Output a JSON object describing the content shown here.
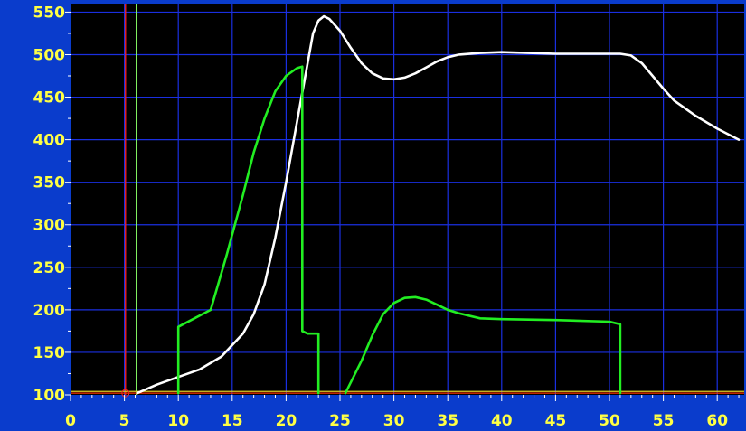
{
  "chart_data": {
    "type": "line",
    "title": "",
    "xlabel": "",
    "ylabel": "",
    "xlim": [
      0,
      62.5
    ],
    "ylim": [
      100,
      560
    ],
    "x_ticks": [
      0,
      5,
      10,
      15,
      20,
      25,
      30,
      35,
      40,
      45,
      50,
      55,
      60
    ],
    "y_ticks": [
      100,
      150,
      200,
      250,
      300,
      350,
      400,
      450,
      500,
      550
    ],
    "x_tick_labels": [
      "0",
      "5",
      "10",
      "15",
      "20",
      "25",
      "30",
      "35",
      "40",
      "45",
      "50",
      "55",
      "60"
    ],
    "y_tick_labels": [
      "100",
      "150",
      "200",
      "250",
      "300",
      "350",
      "400",
      "450",
      "500",
      "550"
    ],
    "grid": true,
    "colors": {
      "frame": "#0a3ccc",
      "plot_background": "#000000",
      "grid": "#1a2fe0",
      "tick_text": "#ffff44",
      "series_white": "#ffffff",
      "series_green": "#22ee22",
      "marker_red": "#ff2222",
      "marker_green": "#88ff66",
      "baseline_red": "#ff3300",
      "baseline_yellow": "#ddcc22"
    },
    "series": [
      {
        "color": "#ffffff",
        "points": [
          [
            6.2,
            102
          ],
          [
            8,
            112
          ],
          [
            10,
            121
          ],
          [
            12,
            130
          ],
          [
            14,
            145
          ],
          [
            16,
            172
          ],
          [
            17,
            195
          ],
          [
            18,
            230
          ],
          [
            19,
            285
          ],
          [
            20,
            350
          ],
          [
            21,
            420
          ],
          [
            22,
            490
          ],
          [
            22.5,
            525
          ],
          [
            23,
            540
          ],
          [
            23.5,
            545
          ],
          [
            24,
            542
          ],
          [
            25,
            528
          ],
          [
            26,
            508
          ],
          [
            27,
            490
          ],
          [
            28,
            478
          ],
          [
            29,
            472
          ],
          [
            30,
            471
          ],
          [
            31,
            473
          ],
          [
            32,
            478
          ],
          [
            33,
            485
          ],
          [
            34,
            492
          ],
          [
            35,
            497
          ],
          [
            36,
            500
          ],
          [
            38,
            502
          ],
          [
            40,
            503
          ],
          [
            45,
            501
          ],
          [
            50,
            501
          ],
          [
            51,
            501
          ],
          [
            52,
            499
          ],
          [
            53,
            490
          ],
          [
            54,
            475
          ],
          [
            55,
            460
          ],
          [
            56,
            446
          ],
          [
            58,
            428
          ],
          [
            60,
            413
          ],
          [
            62,
            400
          ]
        ]
      },
      {
        "color": "#22ee22",
        "segments": [
          [
            [
              10,
              102
            ],
            [
              10,
              180
            ],
            [
              13,
              200
            ],
            [
              14.5,
              265
            ],
            [
              16,
              335
            ],
            [
              17,
              385
            ],
            [
              18,
              425
            ],
            [
              19,
              457
            ],
            [
              20,
              475
            ],
            [
              21,
              484
            ],
            [
              21.5,
              486
            ],
            [
              21.5,
              175
            ],
            [
              22,
              172
            ],
            [
              23,
              172
            ],
            [
              23,
              102
            ]
          ],
          [
            [
              25.5,
              102
            ],
            [
              27,
              140
            ],
            [
              28,
              170
            ],
            [
              29,
              195
            ],
            [
              30,
              208
            ],
            [
              31,
              214
            ],
            [
              32,
              215
            ],
            [
              33,
              212
            ],
            [
              34,
              206
            ],
            [
              35,
              200
            ],
            [
              36,
              196
            ],
            [
              38,
              190
            ],
            [
              40,
              189
            ],
            [
              45,
              188
            ],
            [
              50,
              186
            ],
            [
              51,
              183
            ],
            [
              51,
              102
            ]
          ]
        ]
      }
    ],
    "markers": [
      {
        "type": "vline",
        "x": 5.1,
        "color": "#ff2222"
      },
      {
        "type": "vline",
        "x": 6.1,
        "color": "#88ff66"
      },
      {
        "type": "hline",
        "y": 102,
        "color": "#ff3300"
      },
      {
        "type": "hline",
        "y": 104,
        "color": "#ddcc22"
      }
    ]
  }
}
